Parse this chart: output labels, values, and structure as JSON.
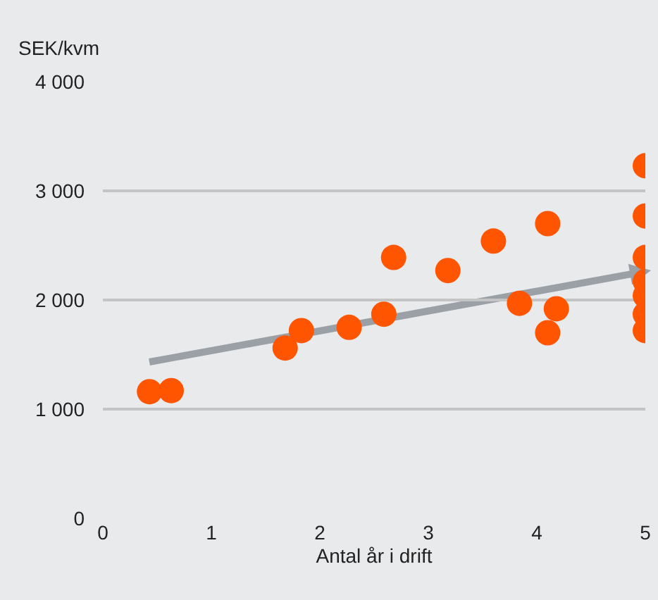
{
  "chart_data": {
    "type": "scatter",
    "ylabel": "SEK/kvm",
    "xlabel": "Antal år i drift",
    "xlim": [
      0,
      5
    ],
    "xticks": [
      0,
      1,
      2,
      3,
      4,
      5
    ],
    "ylim": [
      0,
      4000
    ],
    "yticks": [
      {
        "value": 0,
        "label": "0"
      },
      {
        "value": 1000,
        "label": "1 000"
      },
      {
        "value": 2000,
        "label": "2 000"
      },
      {
        "value": 3000,
        "label": "3 000"
      },
      {
        "value": 4000,
        "label": "4 000"
      }
    ],
    "grid": "y",
    "marker": "circle",
    "series": [
      {
        "color": "#ff5500",
        "x": [
          0.43,
          0.63,
          1.68,
          1.83,
          2.27,
          2.59,
          2.68,
          3.18,
          3.6,
          4.1,
          3.84,
          4.18,
          4.1,
          5,
          5,
          5,
          5,
          5,
          5,
          5
        ],
        "values": [
          1160,
          1170,
          1560,
          1720,
          1750,
          1870,
          2390,
          2270,
          2540,
          2700,
          1970,
          1920,
          1700,
          3230,
          2770,
          2390,
          2170,
          2040,
          1870,
          1720
        ]
      }
    ]
  }
}
